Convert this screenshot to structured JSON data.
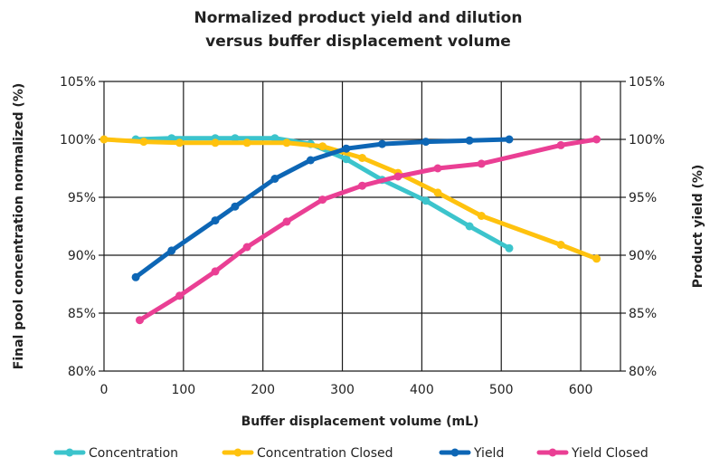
{
  "chart_data": {
    "type": "line",
    "title_lines": [
      "Normalized product yield and dilution",
      "versus buffer displacement volume"
    ],
    "xlabel": "Buffer displacement volume (mL)",
    "ylabel_left": "Final pool concentration normalized (%)",
    "ylabel_right": "Product yield (%)",
    "xlim": [
      0,
      650
    ],
    "ylim": [
      80,
      105
    ],
    "x_ticks": [
      0,
      100,
      200,
      300,
      400,
      500,
      600
    ],
    "x_tick_labels": [
      "0",
      "100",
      "200",
      "300",
      "400",
      "500",
      "600"
    ],
    "y_ticks": [
      80,
      85,
      90,
      95,
      100,
      105
    ],
    "y_tick_labels_left": [
      "80%",
      "85%",
      "90%",
      "95%",
      "100%",
      "105%"
    ],
    "y_tick_labels_right": [
      "80%",
      "85%",
      "90%",
      "95%",
      "100%",
      "105%"
    ],
    "grid": true,
    "legend_position": "bottom",
    "series": [
      {
        "name": "Concentration",
        "color": "#3cc4cc",
        "points": [
          [
            40,
            100.0
          ],
          [
            85,
            100.1
          ],
          [
            140,
            100.1
          ],
          [
            165,
            100.1
          ],
          [
            215,
            100.1
          ],
          [
            260,
            99.6
          ],
          [
            305,
            98.3
          ],
          [
            350,
            96.5
          ],
          [
            405,
            94.7
          ],
          [
            460,
            92.5
          ],
          [
            510,
            90.6
          ]
        ]
      },
      {
        "name": "Concentration Closed",
        "color": "#ffc20e",
        "points": [
          [
            0,
            100.0
          ],
          [
            50,
            99.8
          ],
          [
            95,
            99.7
          ],
          [
            140,
            99.7
          ],
          [
            180,
            99.7
          ],
          [
            230,
            99.7
          ],
          [
            275,
            99.4
          ],
          [
            325,
            98.4
          ],
          [
            370,
            97.1
          ],
          [
            420,
            95.4
          ],
          [
            475,
            93.4
          ],
          [
            575,
            90.9
          ],
          [
            620,
            89.7
          ]
        ]
      },
      {
        "name": "Yield",
        "color": "#0d66b5",
        "points": [
          [
            40,
            88.1
          ],
          [
            85,
            90.4
          ],
          [
            140,
            93.0
          ],
          [
            165,
            94.2
          ],
          [
            215,
            96.6
          ],
          [
            260,
            98.2
          ],
          [
            305,
            99.2
          ],
          [
            350,
            99.6
          ],
          [
            405,
            99.8
          ],
          [
            460,
            99.9
          ],
          [
            510,
            100.0
          ]
        ]
      },
      {
        "name": "Yield Closed",
        "color": "#ea3f94",
        "points": [
          [
            45,
            84.4
          ],
          [
            95,
            86.5
          ],
          [
            140,
            88.6
          ],
          [
            180,
            90.7
          ],
          [
            230,
            92.9
          ],
          [
            275,
            94.8
          ],
          [
            325,
            96.0
          ],
          [
            370,
            96.8
          ],
          [
            420,
            97.5
          ],
          [
            475,
            97.9
          ],
          [
            575,
            99.5
          ],
          [
            620,
            100.0
          ]
        ]
      }
    ]
  }
}
